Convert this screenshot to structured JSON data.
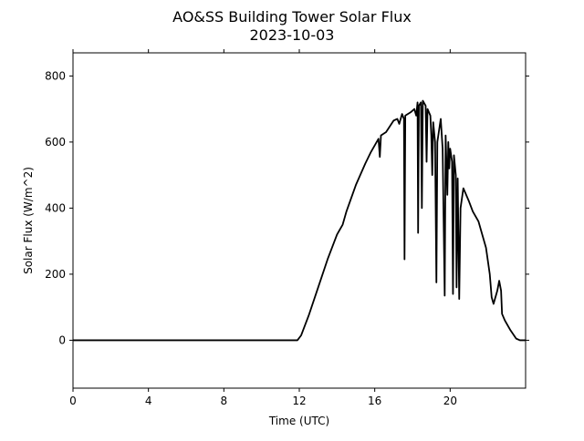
{
  "chart_data": {
    "type": "line",
    "title": "AO&SS Building Tower Solar Flux",
    "subtitle": "2023-10-03",
    "xlabel": "Time (UTC)",
    "ylabel": "Solar Flux (W/m^2)",
    "color": "#000000",
    "x": [
      0,
      11.9,
      12.1,
      12.5,
      13,
      13.5,
      14,
      14.3,
      14.5,
      15,
      15.5,
      15.8,
      16.2,
      16.27,
      16.33,
      16.6,
      17,
      17.2,
      17.3,
      17.45,
      17.55,
      17.58,
      17.62,
      17.9,
      18.1,
      18.2,
      18.27,
      18.3,
      18.34,
      18.45,
      18.5,
      18.55,
      18.7,
      18.75,
      18.8,
      18.95,
      19.0,
      19.05,
      19.1,
      19.2,
      19.27,
      19.32,
      19.5,
      19.6,
      19.71,
      19.76,
      19.85,
      19.9,
      19.95,
      20.0,
      20.1,
      20.15,
      20.2,
      20.3,
      20.34,
      20.4,
      20.48,
      20.55,
      20.7,
      21.0,
      21.2,
      21.5,
      21.8,
      21.9,
      22.0,
      22.1,
      22.2,
      22.3,
      22.5,
      22.6,
      22.7,
      22.75,
      22.9,
      23.2,
      23.5,
      23.7,
      24
    ],
    "values": [
      0,
      0,
      15,
      75,
      160,
      245,
      320,
      350,
      390,
      470,
      535,
      570,
      610,
      555,
      620,
      630,
      665,
      670,
      655,
      685,
      670,
      245,
      680,
      690,
      700,
      680,
      720,
      325,
      710,
      720,
      400,
      725,
      710,
      540,
      700,
      680,
      620,
      500,
      660,
      600,
      175,
      600,
      670,
      580,
      135,
      620,
      440,
      600,
      520,
      580,
      540,
      140,
      560,
      500,
      160,
      490,
      125,
      400,
      460,
      420,
      390,
      360,
      300,
      280,
      240,
      200,
      130,
      110,
      150,
      180,
      150,
      80,
      60,
      30,
      5,
      0,
      0
    ],
    "xlim": [
      0,
      24
    ],
    "ylim": [
      -145,
      870
    ],
    "xticks": [
      0,
      4,
      8,
      12,
      16,
      20
    ],
    "yticks": [
      0,
      200,
      400,
      600,
      800
    ]
  }
}
